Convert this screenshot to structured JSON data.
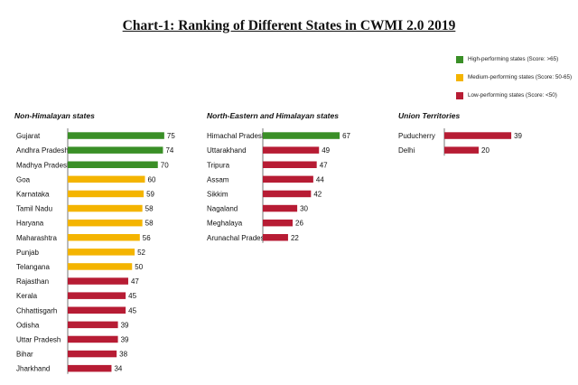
{
  "title": "Chart-1: Ranking of Different States  in CWMI 2.0 2019",
  "legend": [
    {
      "label": "High-performing states (Score: >65)",
      "color": "#3a8f27"
    },
    {
      "label": "Medium-performing states (Score: 50-65)",
      "color": "#f4b400"
    },
    {
      "label": "Low-performing states (Score: <50)",
      "color": "#b71c34"
    }
  ],
  "chart_data": [
    {
      "type": "bar",
      "orientation": "horizontal",
      "title": "Non-Himalayan states",
      "categories": [
        "Gujarat",
        "Andhra Pradesh",
        "Madhya Pradesh",
        "Goa",
        "Karnataka",
        "Tamil Nadu",
        "Haryana",
        "Maharashtra",
        "Punjab",
        "Telangana",
        "Rajasthan",
        "Kerala",
        "Chhattisgarh",
        "Odisha",
        "Uttar Pradesh",
        "Bihar",
        "Jharkhand"
      ],
      "values": [
        75,
        74,
        70,
        60,
        59,
        58,
        58,
        56,
        52,
        50,
        47,
        45,
        45,
        39,
        39,
        38,
        34
      ],
      "colors": [
        "#3a8f27",
        "#3a8f27",
        "#3a8f27",
        "#f4b400",
        "#f4b400",
        "#f4b400",
        "#f4b400",
        "#f4b400",
        "#f4b400",
        "#f4b400",
        "#b71c34",
        "#b71c34",
        "#b71c34",
        "#b71c34",
        "#b71c34",
        "#b71c34",
        "#b71c34"
      ]
    },
    {
      "type": "bar",
      "orientation": "horizontal",
      "title": "North-Eastern and Himalayan states",
      "categories": [
        "Himachal Pradesh",
        "Uttarakhand",
        "Tripura",
        "Assam",
        "Sikkim",
        "Nagaland",
        "Meghalaya",
        "Arunachal Pradesh"
      ],
      "values": [
        67,
        49,
        47,
        44,
        42,
        30,
        26,
        22
      ],
      "colors": [
        "#3a8f27",
        "#b71c34",
        "#b71c34",
        "#b71c34",
        "#b71c34",
        "#b71c34",
        "#b71c34",
        "#b71c34"
      ]
    },
    {
      "type": "bar",
      "orientation": "horizontal",
      "title": "Union Territories",
      "categories": [
        "Puducherry",
        "Delhi"
      ],
      "values": [
        39,
        20
      ],
      "colors": [
        "#b71c34",
        "#b71c34"
      ]
    }
  ]
}
